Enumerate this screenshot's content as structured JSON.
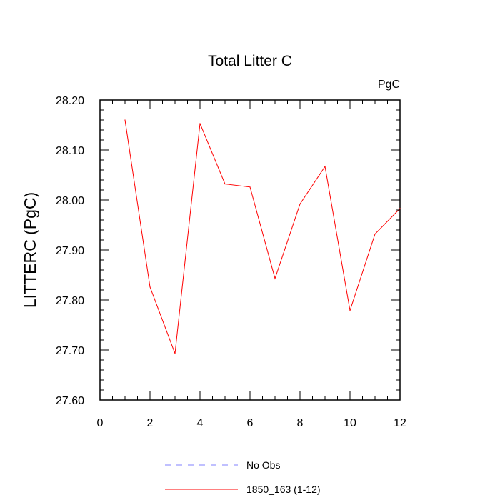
{
  "chart_data": {
    "type": "line",
    "title": "Total Litter C",
    "units_label": "PgC",
    "ylabel": "LITTERC  (PgC)",
    "xlabel": "",
    "xlim": [
      0,
      12
    ],
    "ylim": [
      27.6,
      28.2
    ],
    "x_ticks": [
      "0",
      "2",
      "4",
      "6",
      "8",
      "10",
      "12"
    ],
    "y_ticks": [
      "27.60",
      "27.70",
      "27.80",
      "27.90",
      "28.00",
      "28.10",
      "28.20"
    ],
    "grid": false,
    "legend_position": "bottom",
    "series": [
      {
        "name": "No Obs",
        "color": "#8080ff",
        "dash": "dashed",
        "x": [],
        "values": []
      },
      {
        "name": "1850_163 (1-12)",
        "color": "#ff0000",
        "dash": "solid",
        "x": [
          1,
          2,
          3,
          4,
          5,
          6,
          7,
          8,
          9,
          10,
          11,
          12
        ],
        "values": [
          28.16,
          27.826,
          27.693,
          28.153,
          28.032,
          28.026,
          27.843,
          27.992,
          28.067,
          27.779,
          27.932,
          27.983
        ]
      }
    ]
  }
}
